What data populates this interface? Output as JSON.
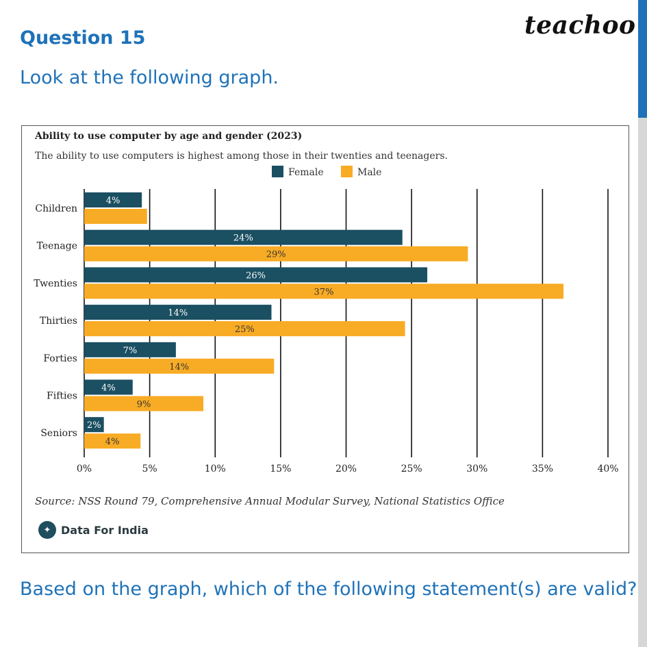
{
  "header": {
    "question": "Question 15",
    "brand": "teachoo",
    "prompt": "Look at the following graph."
  },
  "chart_data": {
    "type": "bar",
    "orientation": "horizontal",
    "title": "Ability to use computer by age and gender (2023)",
    "subtitle": "The ability to use computers is highest among those in their twenties and teenagers.",
    "categories": [
      "Children",
      "Teenage",
      "Twenties",
      "Thirties",
      "Forties",
      "Fifties",
      "Seniors"
    ],
    "series": [
      {
        "name": "Female",
        "color": "#1b4f62",
        "label_color": "#ffffff",
        "values": [
          4.4,
          24.3,
          26.2,
          14.3,
          7.0,
          3.7,
          1.5
        ],
        "labels": [
          "4%",
          "24%",
          "26%",
          "14%",
          "7%",
          "4%",
          "2%"
        ]
      },
      {
        "name": "Male",
        "color": "#f8ab24",
        "label_color": "#333333",
        "values": [
          4.8,
          29.3,
          36.6,
          24.5,
          14.5,
          9.1,
          4.3
        ],
        "labels": [
          "",
          "29%",
          "37%",
          "25%",
          "14%",
          "9%",
          "4%"
        ]
      }
    ],
    "xlim": [
      0,
      40
    ],
    "xticks": [
      0,
      5,
      10,
      15,
      20,
      25,
      30,
      35,
      40
    ],
    "xtick_labels": [
      "0%",
      "5%",
      "10%",
      "15%",
      "20%",
      "25%",
      "30%",
      "35%",
      "40%"
    ],
    "grid": true,
    "legend": "top-center",
    "source": "Source: NSS Round 79, Comprehensive Annual Modular Survey, National Statistics Office"
  },
  "footer_brand": {
    "name": "Data For India",
    "logo_glyph": "✦"
  },
  "bottom_question": "Based on the graph, which of the following statement(s) are valid?"
}
